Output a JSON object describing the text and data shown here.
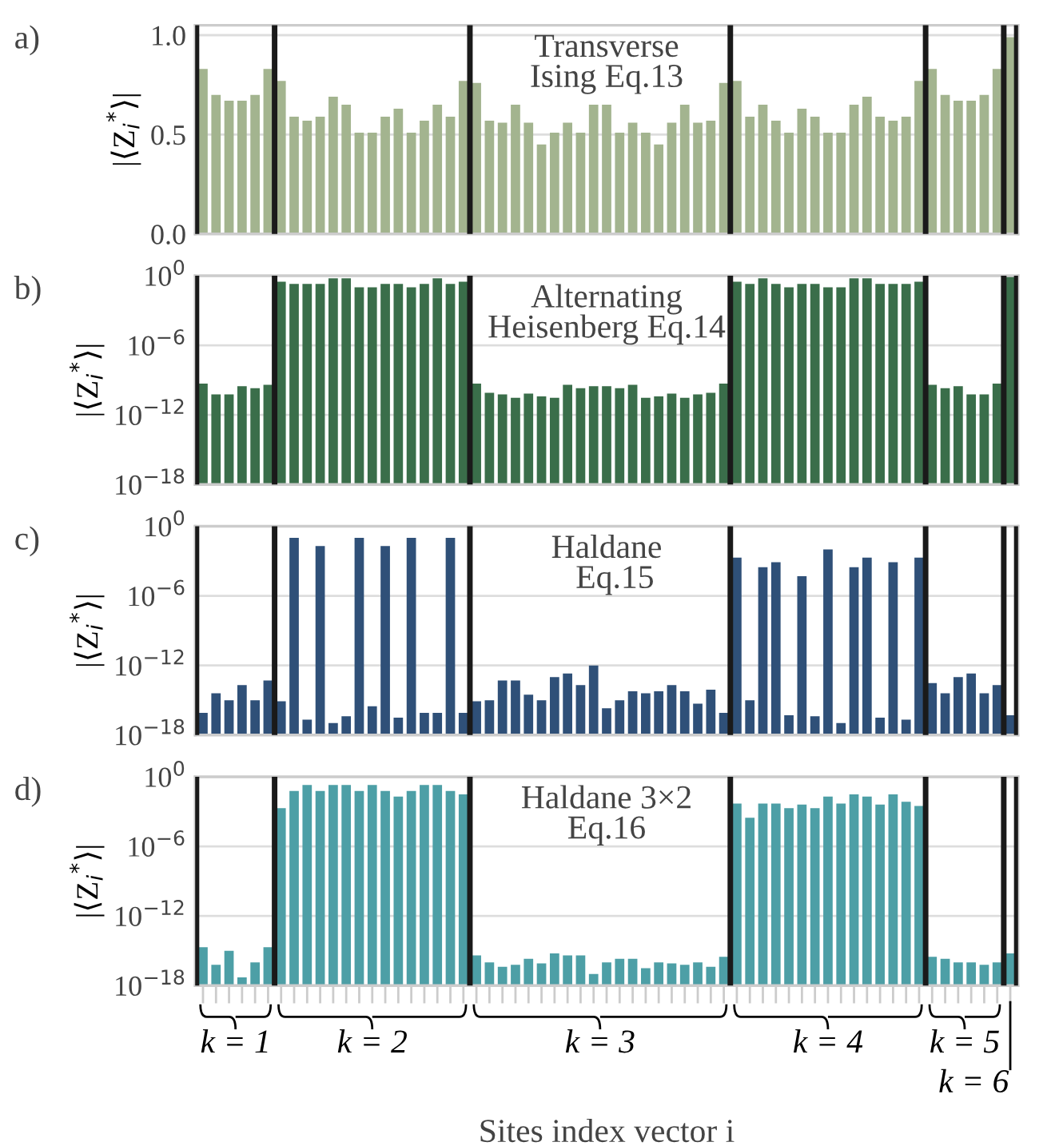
{
  "chart_data": [
    {
      "type": "bar",
      "ylabel": "|⟨Z$_{i}$$^{*}$⟩|",
      "annotations": [
        "a)",
        "Transverse\nIsing Eq.13"
      ],
      "categories": [
        null,
        null,
        null,
        null,
        null,
        null,
        null,
        null,
        null,
        null,
        null,
        null,
        null,
        null,
        null,
        null,
        null,
        null,
        null,
        null,
        null,
        null,
        null,
        null,
        null,
        null,
        null,
        null,
        null,
        null,
        null,
        null,
        null,
        null,
        null,
        null,
        null,
        null,
        null,
        null,
        null,
        null,
        null,
        null,
        null,
        null,
        null,
        null,
        null,
        null,
        null,
        null,
        null,
        null,
        null,
        null,
        null,
        null,
        null,
        null,
        null,
        null,
        null
      ],
      "color": "#a3b48f",
      "values": [
        0.83,
        0.7,
        0.67,
        0.67,
        0.7,
        0.83,
        0.77,
        0.59,
        0.57,
        0.59,
        0.69,
        0.65,
        0.51,
        0.51,
        0.59,
        0.63,
        0.51,
        0.57,
        0.65,
        0.59,
        0.77,
        0.76,
        0.57,
        0.56,
        0.65,
        0.56,
        0.45,
        0.51,
        0.56,
        0.51,
        0.65,
        0.65,
        0.51,
        0.56,
        0.51,
        0.45,
        0.56,
        0.65,
        0.56,
        0.57,
        0.76,
        0.77,
        0.59,
        0.65,
        0.57,
        0.51,
        0.63,
        0.59,
        0.51,
        0.51,
        0.65,
        0.69,
        0.59,
        0.57,
        0.59,
        0.77,
        0.83,
        0.7,
        0.67,
        0.67,
        0.7,
        0.83,
        0.99
      ],
      "ylim": [
        0,
        1.05
      ],
      "yticks": [
        {
          "value": 0,
          "label": "0.0"
        },
        0.5,
        {
          "value": 1,
          "label": "1.0"
        }
      ],
      "grid": "y",
      "tick_labels": "y"
    },
    {
      "type": "bar",
      "ylabel": "|⟨Z$_{i}$$^{*}$⟩|",
      "annotations": [
        "b)",
        "Alternating\nHeisenberg Eq.14"
      ],
      "categories": [
        null,
        null,
        null,
        null,
        null,
        null,
        null,
        null,
        null,
        null,
        null,
        null,
        null,
        null,
        null,
        null,
        null,
        null,
        null,
        null,
        null,
        null,
        null,
        null,
        null,
        null,
        null,
        null,
        null,
        null,
        null,
        null,
        null,
        null,
        null,
        null,
        null,
        null,
        null,
        null,
        null,
        null,
        null,
        null,
        null,
        null,
        null,
        null,
        null,
        null,
        null,
        null,
        null,
        null,
        null,
        null,
        null,
        null,
        null,
        null,
        null,
        null,
        null
      ],
      "color": "#3a6e4a",
      "log": true,
      "values": [
        5e-10,
        6e-11,
        6e-11,
        3e-10,
        2e-10,
        4e-10,
        0.3,
        0.2,
        0.2,
        0.2,
        0.6,
        0.6,
        0.1,
        0.1,
        0.2,
        0.2,
        0.1,
        0.2,
        0.6,
        0.2,
        0.3,
        5e-10,
        8e-11,
        6e-11,
        3e-11,
        7e-11,
        4e-11,
        3e-11,
        4e-10,
        2e-10,
        3e-10,
        3e-10,
        2e-10,
        4e-10,
        3e-11,
        4e-11,
        7e-11,
        3e-11,
        6e-11,
        8e-11,
        5e-10,
        0.3,
        0.2,
        0.6,
        0.2,
        0.1,
        0.2,
        0.2,
        0.1,
        0.1,
        0.6,
        0.6,
        0.2,
        0.2,
        0.2,
        0.3,
        4e-10,
        2e-10,
        3e-10,
        6e-11,
        6e-11,
        5e-10,
        1
      ],
      "ylim": [
        1e-18,
        1
      ],
      "yticks": [
        {
          "value": 1e-18,
          "label": "10$^{−18}$"
        },
        {
          "value": 1e-12,
          "label": "10$^{−12}$"
        },
        {
          "value": 1e-06,
          "label": "10$^{−6}$"
        },
        {
          "value": 1,
          "label": "10$^{0}$"
        }
      ],
      "grid": "y",
      "tick_labels": "y"
    },
    {
      "type": "bar",
      "ylabel": "|⟨Z$_{i}$$^{*}$⟩|",
      "annotations": [
        "c)",
        "Haldane\n  Eq.15"
      ],
      "categories": [
        null,
        null,
        null,
        null,
        null,
        null,
        null,
        null,
        null,
        null,
        null,
        null,
        null,
        null,
        null,
        null,
        null,
        null,
        null,
        null,
        null,
        null,
        null,
        null,
        null,
        null,
        null,
        null,
        null,
        null,
        null,
        null,
        null,
        null,
        null,
        null,
        null,
        null,
        null,
        null,
        null,
        null,
        null,
        null,
        null,
        null,
        null,
        null,
        null,
        null,
        null,
        null,
        null,
        null,
        null,
        null,
        null,
        null,
        null,
        null,
        null,
        null,
        null
      ],
      "color": "#2f5078",
      "log": true,
      "values": [
        8e-17,
        4e-15,
        1e-15,
        2e-14,
        1e-15,
        5e-14,
        8e-16,
        0.1,
        2e-17,
        0.02,
        1e-17,
        4e-17,
        0.1,
        3e-16,
        0.02,
        3e-17,
        0.1,
        8e-17,
        8e-17,
        0.1,
        8e-17,
        8e-16,
        1e-15,
        5e-14,
        5e-14,
        3e-15,
        1e-15,
        1e-13,
        2e-13,
        2e-14,
        1e-12,
        2e-16,
        1e-15,
        6e-15,
        4e-15,
        6e-15,
        2e-14,
        6e-15,
        5e-16,
        8e-15,
        8e-17,
        0.002,
        1e-15,
        0.0003,
        0.0008,
        5e-17,
        5e-05,
        4e-17,
        0.01,
        1e-17,
        0.0003,
        0.002,
        3e-17,
        0.0008,
        2e-17,
        0.002,
        3e-14,
        4e-15,
        1e-13,
        2e-13,
        4e-15,
        2e-14,
        5e-17
      ],
      "ylim": [
        1e-18,
        1
      ],
      "yticks": [
        {
          "value": 1e-18,
          "label": "10$^{−18}$"
        },
        {
          "value": 1e-12,
          "label": "10$^{−12}$"
        },
        {
          "value": 1e-06,
          "label": "10$^{−6}$"
        },
        {
          "value": 1,
          "label": "10$^{0}$"
        }
      ],
      "grid": "y",
      "tick_labels": "y"
    },
    {
      "type": "bar",
      "ylabel": "|⟨Z$_{i}$$^{*}$⟩|",
      "xlabel": "Sites index vector i",
      "annotations": [
        "d)",
        "Haldane 3×2\nEq.16",
        "k = 1",
        "k = 2",
        "k = 3",
        "k = 4",
        "k = 5",
        "k = 6"
      ],
      "categories": [
        null,
        null,
        null,
        null,
        null,
        null,
        null,
        null,
        null,
        null,
        null,
        null,
        null,
        null,
        null,
        null,
        null,
        null,
        null,
        null,
        null,
        null,
        null,
        null,
        null,
        null,
        null,
        null,
        null,
        null,
        null,
        null,
        null,
        null,
        null,
        null,
        null,
        null,
        null,
        null,
        null,
        null,
        null,
        null,
        null,
        null,
        null,
        null,
        null,
        null,
        null,
        null,
        null,
        null,
        null,
        null,
        null,
        null,
        null,
        null,
        null,
        null,
        null
      ],
      "color": "#4d9fa6",
      "log": true,
      "values": [
        2e-15,
        6e-17,
        1e-15,
        4e-18,
        1e-16,
        2e-15,
        0.002,
        0.06,
        0.2,
        0.06,
        0.2,
        0.2,
        0.06,
        0.2,
        0.06,
        0.02,
        0.06,
        0.2,
        0.2,
        0.06,
        0.03,
        4e-16,
        1e-16,
        4e-17,
        6e-17,
        2e-16,
        8e-17,
        6e-16,
        4e-16,
        4e-16,
        9e-18,
        1e-16,
        2e-16,
        2e-16,
        3e-17,
        1e-16,
        8e-17,
        6e-17,
        1e-16,
        4e-17,
        3e-16,
        0.005,
        0.0003,
        0.005,
        0.005,
        0.002,
        0.004,
        0.002,
        0.02,
        0.005,
        0.03,
        0.02,
        0.004,
        0.03,
        0.007,
        0.003,
        3e-16,
        2e-16,
        1e-16,
        1e-16,
        6e-17,
        1e-16,
        6e-16
      ],
      "ylim": [
        1e-18,
        1
      ],
      "yticks": [
        {
          "value": 1e-18,
          "label": "10$^{−18}$"
        },
        {
          "value": 1e-12,
          "label": "10$^{−12}$"
        },
        {
          "value": 1e-06,
          "label": "10$^{−6}$"
        },
        {
          "value": 1,
          "label": "10$^{0}$"
        }
      ],
      "grid": "y",
      "tick_labels": "y"
    }
  ]
}
